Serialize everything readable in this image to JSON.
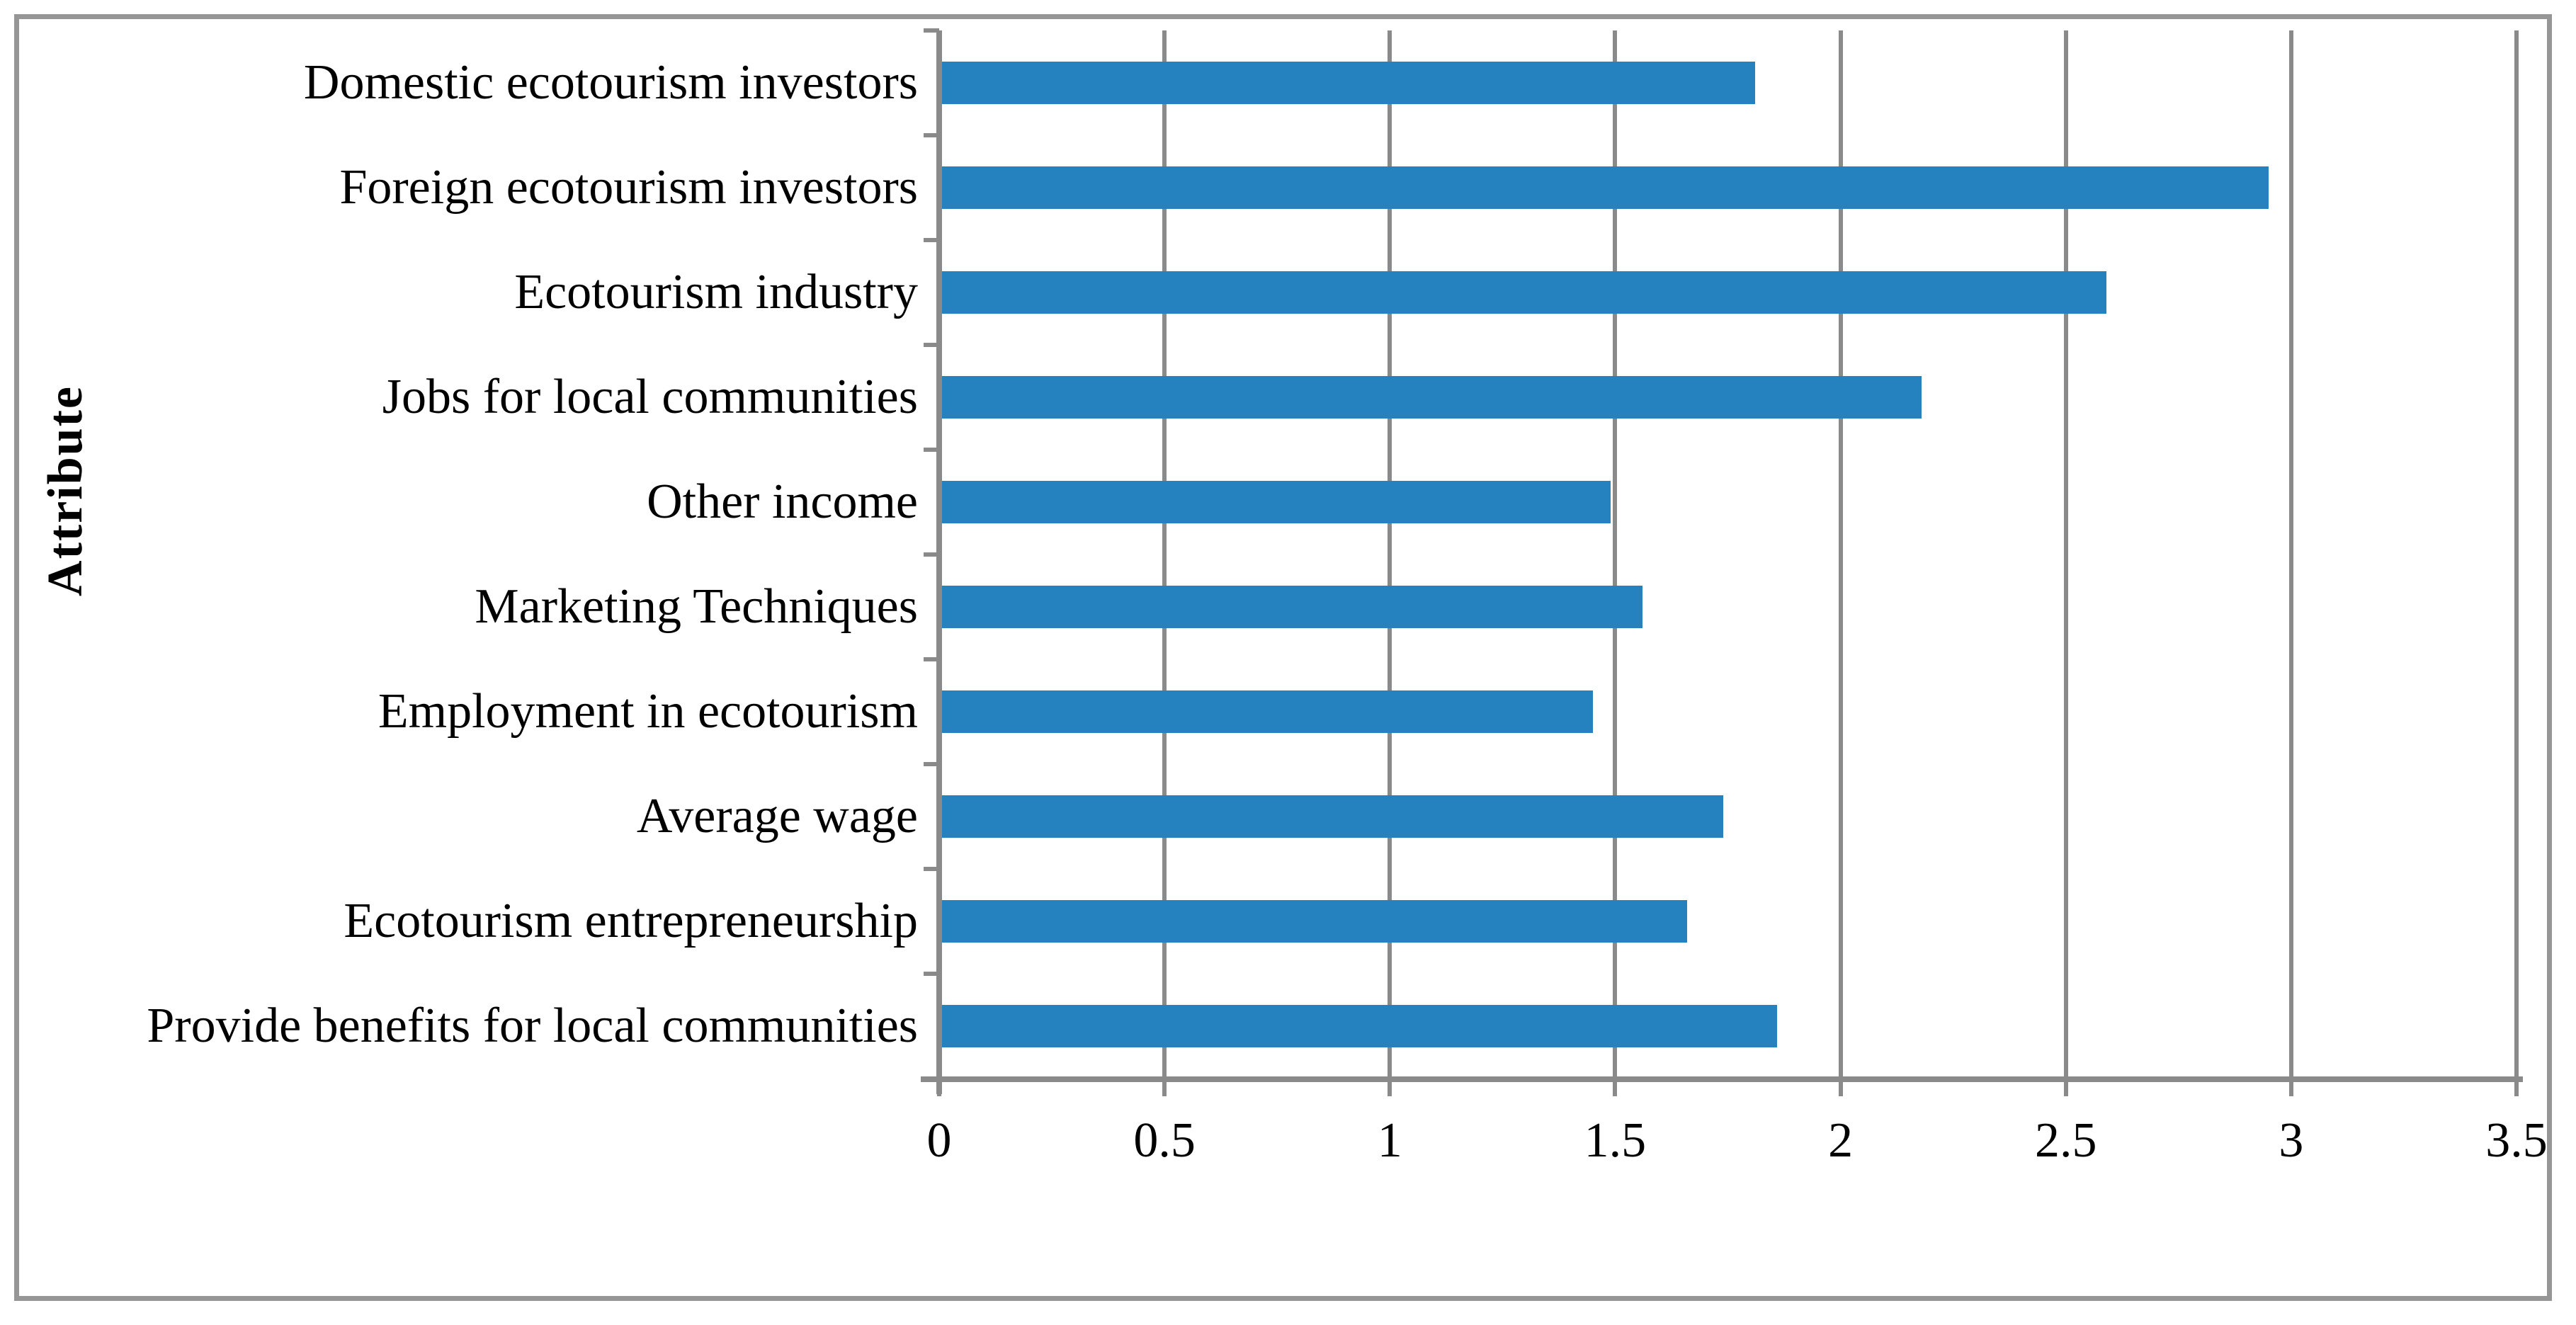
{
  "chart_data": {
    "type": "bar",
    "orientation": "horizontal",
    "title": "",
    "xlabel": "",
    "ylabel": "Attribute",
    "categories": [
      "Domestic ecotourism investors",
      "Foreign ecotourism investors",
      "Ecotourism industry",
      "Jobs for local communities",
      "Other income",
      "Marketing Techniques",
      "Employment in ecotourism",
      "Average wage",
      "Ecotourism entrepreneurship",
      "Provide benefits for local communities"
    ],
    "values": [
      1.81,
      2.95,
      2.59,
      2.18,
      1.49,
      1.56,
      1.45,
      1.74,
      1.66,
      1.86
    ],
    "xlim": [
      0,
      3.5
    ],
    "x_tick_values": [
      0,
      0.5,
      1,
      1.5,
      2,
      2.5,
      3,
      3.5
    ],
    "x_tick_labels": [
      "0",
      "0.5",
      "1",
      "1.5",
      "2",
      "2.5",
      "3",
      "3.5"
    ],
    "grid": "vertical gridlines at every x tick",
    "legend": "none",
    "bar_color": "#2682BE",
    "grid_color": "#8A8A8A",
    "frame_color": "#969696",
    "text_color": "#000000"
  }
}
